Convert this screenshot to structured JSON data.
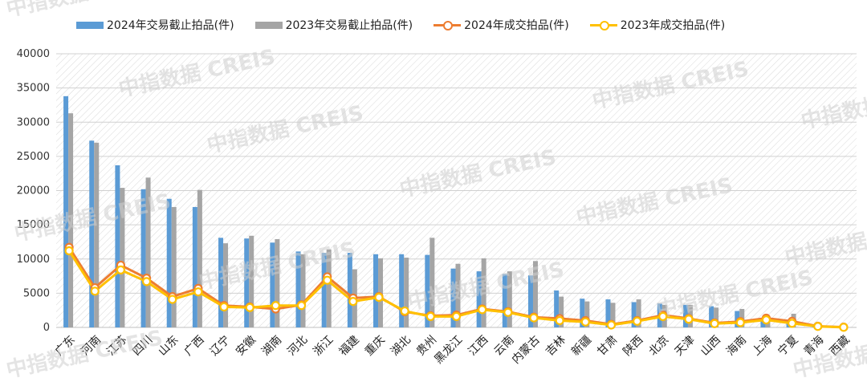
{
  "chart_data": {
    "type": "bar",
    "title": "",
    "xlabel": "",
    "ylabel": "",
    "ylim": [
      0,
      40000
    ],
    "yticks": [
      0,
      5000,
      10000,
      15000,
      20000,
      25000,
      30000,
      35000,
      40000
    ],
    "grid": true,
    "legend_position": "top",
    "categories": [
      "广东",
      "河南",
      "江苏",
      "四川",
      "山东",
      "广西",
      "辽宁",
      "安徽",
      "湖南",
      "河北",
      "浙江",
      "福建",
      "重庆",
      "湖北",
      "贵州",
      "黑龙江",
      "江西",
      "云南",
      "内蒙古",
      "吉林",
      "新疆",
      "甘肃",
      "陕西",
      "北京",
      "天津",
      "山西",
      "海南",
      "上海",
      "宁夏",
      "青海",
      "西藏"
    ],
    "series": [
      {
        "name": "2024年交易截止拍品(件)",
        "kind": "bar",
        "color": "#5b9bd5",
        "values": [
          33800,
          27300,
          23700,
          20200,
          18800,
          17600,
          13100,
          13000,
          12400,
          11100,
          10900,
          10900,
          10700,
          10700,
          10600,
          8600,
          8200,
          7800,
          7600,
          5400,
          4200,
          4100,
          3700,
          3500,
          3300,
          3100,
          2400,
          1400,
          1100,
          400,
          80
        ]
      },
      {
        "name": "2023年交易截止拍品(件)",
        "kind": "bar",
        "color": "#a5a5a5",
        "values": [
          31300,
          27000,
          20400,
          21900,
          17600,
          20100,
          12300,
          13400,
          12900,
          10700,
          11400,
          8500,
          10100,
          10200,
          13100,
          9300,
          10100,
          8200,
          9700,
          4500,
          3800,
          3600,
          4100,
          3300,
          3300,
          2900,
          2700,
          1500,
          2000,
          500,
          60
        ]
      },
      {
        "name": "2024年成交拍品(件)",
        "kind": "line",
        "color": "#ed7d31",
        "values": [
          11700,
          5800,
          9100,
          7200,
          4500,
          5700,
          3200,
          3000,
          2700,
          3300,
          7400,
          4300,
          4500,
          2300,
          1700,
          1800,
          2700,
          2300,
          1500,
          1300,
          1000,
          450,
          1000,
          1800,
          1300,
          650,
          850,
          1350,
          900,
          180,
          40
        ]
      },
      {
        "name": "2023年成交拍品(件)",
        "kind": "line",
        "color": "#ffc000",
        "values": [
          11200,
          5300,
          8400,
          6700,
          4100,
          5200,
          3000,
          2900,
          3200,
          3200,
          6900,
          3800,
          4400,
          2400,
          1600,
          1600,
          2600,
          2200,
          1400,
          1000,
          800,
          350,
          900,
          1600,
          1200,
          550,
          700,
          1100,
          600,
          150,
          20
        ]
      }
    ]
  },
  "watermark": {
    "cn": "中指数据",
    "en": "CREIS"
  }
}
